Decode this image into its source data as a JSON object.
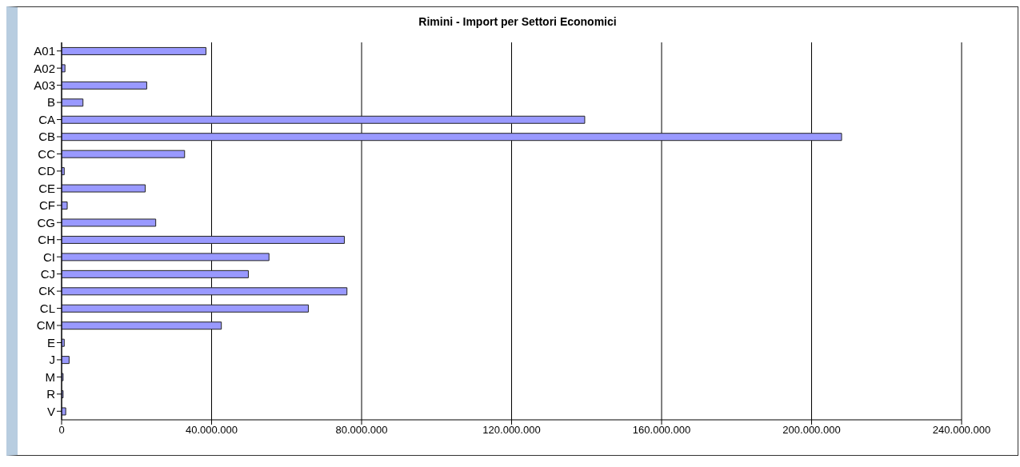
{
  "chart_data": {
    "type": "bar",
    "orientation": "horizontal",
    "title": "Rimini - Import per Settori Economici",
    "categories": [
      "A01",
      "A02",
      "A03",
      "B",
      "CA",
      "CB",
      "CC",
      "CD",
      "CE",
      "CF",
      "CG",
      "CH",
      "CI",
      "CJ",
      "CK",
      "CL",
      "CM",
      "E",
      "J",
      "M",
      "R",
      "V"
    ],
    "values": [
      38500000,
      900000,
      22700000,
      5700000,
      139500000,
      208000000,
      32800000,
      700000,
      22300000,
      1500000,
      25100000,
      75400000,
      55300000,
      49800000,
      76100000,
      65800000,
      42600000,
      700000,
      2000000,
      400000,
      400000,
      1100000
    ],
    "color": "#9999ff",
    "xlim": [
      0,
      240000000
    ],
    "xticks": [
      0,
      {
        "value": 40000000,
        "label": "40.000.000"
      },
      {
        "value": 80000000,
        "label": "80.000.000"
      },
      {
        "value": 120000000,
        "label": "120.000.000"
      },
      {
        "value": 160000000,
        "label": "160.000.000"
      },
      {
        "value": 200000000,
        "label": "200.000.000"
      },
      {
        "value": 240000000,
        "label": "240.000.000"
      }
    ],
    "grid": "x",
    "legend": false
  }
}
